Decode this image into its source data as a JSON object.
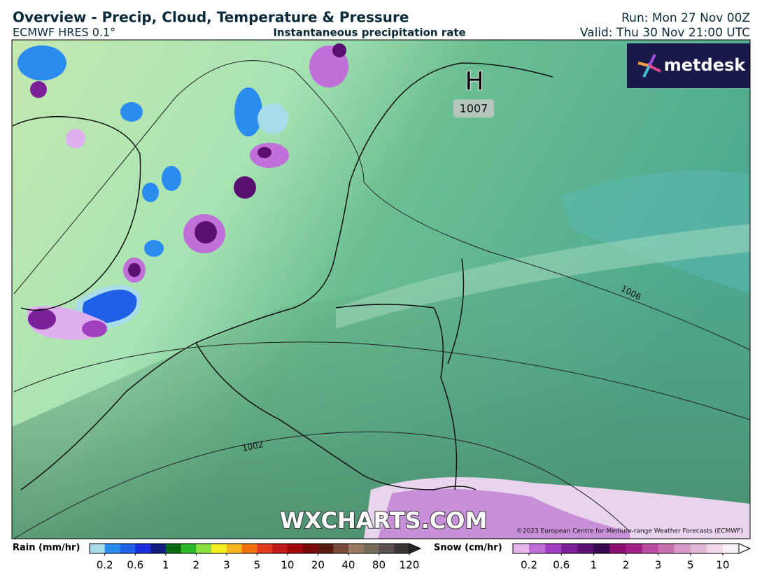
{
  "header": {
    "title": "Overview - Precip, Cloud, Temperature & Pressure",
    "model": "ECMWF HRES 0.1°",
    "subtitle": "Instantaneous precipitation rate",
    "run": "Run: Mon 27 Nov 00Z",
    "valid": "Valid: Thu 30 Nov 21:00 UTC"
  },
  "map": {
    "logo": "metdesk",
    "pressure_center": {
      "label": "H",
      "value": "1007"
    },
    "isobar_labels": [
      "1006",
      "1002"
    ],
    "watermark": "WXCHARTS.COM",
    "credit": "©2023 European Centre for Medium-range Weather Forecasts (ECMWF)"
  },
  "legend": {
    "rain": {
      "title": "Rain (mm/hr)",
      "labels": [
        "0.2",
        "0.6",
        "1",
        "2",
        "3",
        "5",
        "10",
        "20",
        "40",
        "80",
        "120"
      ],
      "colors": [
        "#a8dce8",
        "#2b8cf0",
        "#2060e8",
        "#1a2ee0",
        "#101a80",
        "#0a6a10",
        "#2ab82a",
        "#8ae040",
        "#f4f020",
        "#f8b820",
        "#f07010",
        "#e03820",
        "#c01818",
        "#a00808",
        "#780808",
        "#5a1a10",
        "#7a4a38",
        "#9a7a60",
        "#7a6a5a",
        "#5a5050",
        "#3a3636"
      ]
    },
    "snow": {
      "title": "Snow (cm/hr)",
      "labels": [
        "0.2",
        "0.6",
        "1",
        "2",
        "3",
        "5",
        "10"
      ],
      "colors": [
        "#e8b8ec",
        "#c070d8",
        "#a040c0",
        "#7a2098",
        "#5a1070",
        "#3a0a50",
        "#8a1070",
        "#a02088",
        "#b84ca0",
        "#c870b0",
        "#d898c8",
        "#e4b8d8",
        "#f0d8ea",
        "#faf0f8"
      ]
    }
  }
}
